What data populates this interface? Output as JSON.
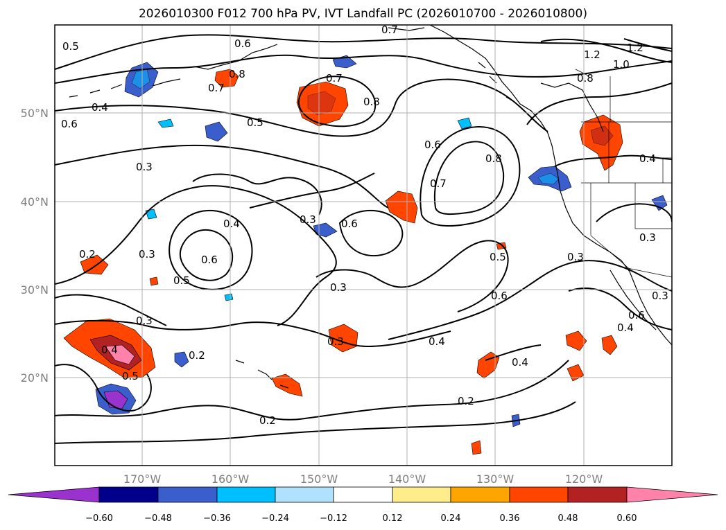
{
  "title": "2026010300 F012 700 hPa PV, IVT Landfall PC (2026010700 - 2026010800)",
  "axes": {
    "lon_labels": [
      "170°W",
      "160°W",
      "150°W",
      "140°W",
      "130°W",
      "120°W"
    ],
    "lat_labels": [
      "50°N",
      "40°N",
      "30°N",
      "20°N"
    ],
    "lon_range": [
      -180,
      -110
    ],
    "lat_range": [
      10,
      60
    ],
    "grid": true
  },
  "contour_labels": [
    "0.5",
    "0.6",
    "0.8",
    "0.7",
    "0.7",
    "0.8",
    "0.7",
    "1.2",
    "1.2",
    "1.0",
    "0.8",
    "0.4",
    "0.6",
    "0.5",
    "0.3",
    "0.6",
    "0.7",
    "0.8",
    "0.4",
    "0.3",
    "0.6",
    "0.4",
    "0.6",
    "0.5",
    "0.3",
    "0.2",
    "0.3",
    "0.3",
    "0.5",
    "0.6",
    "0.3",
    "0.3",
    "0.3",
    "0.4",
    "0.3",
    "0.4",
    "0.5",
    "0.2",
    "0.4",
    "0.2",
    "0.2",
    "0.4",
    "0.6"
  ],
  "colorbar": {
    "ticks": [
      "−0.60",
      "−0.48",
      "−0.36",
      "−0.24",
      "−0.12",
      "0.12",
      "0.24",
      "0.36",
      "0.48",
      "0.60"
    ],
    "colors": [
      "#9a32cd",
      "#00008b",
      "#3a5fcd",
      "#00bfff",
      "#b0e2ff",
      "#ffffff",
      "#ffec8b",
      "#ffa500",
      "#ff4500",
      "#b22222",
      "#ff82ab"
    ]
  },
  "chart_data": {
    "type": "filled-contour map",
    "title": "2026010300 F012 700 hPa PV, IVT Landfall PC (2026010700 - 2026010800)",
    "fields": [
      "700 hPa PV (black contour lines)",
      "IVT landfall PC (color fill)"
    ],
    "contour_levels": [
      0.2,
      0.3,
      0.4,
      0.5,
      0.6,
      0.7,
      0.8,
      1.0,
      1.2
    ],
    "fill_levels": [
      -0.6,
      -0.48,
      -0.36,
      -0.24,
      -0.12,
      0.12,
      0.24,
      0.36,
      0.48,
      0.6
    ],
    "colorbar_extend": "both"
  }
}
